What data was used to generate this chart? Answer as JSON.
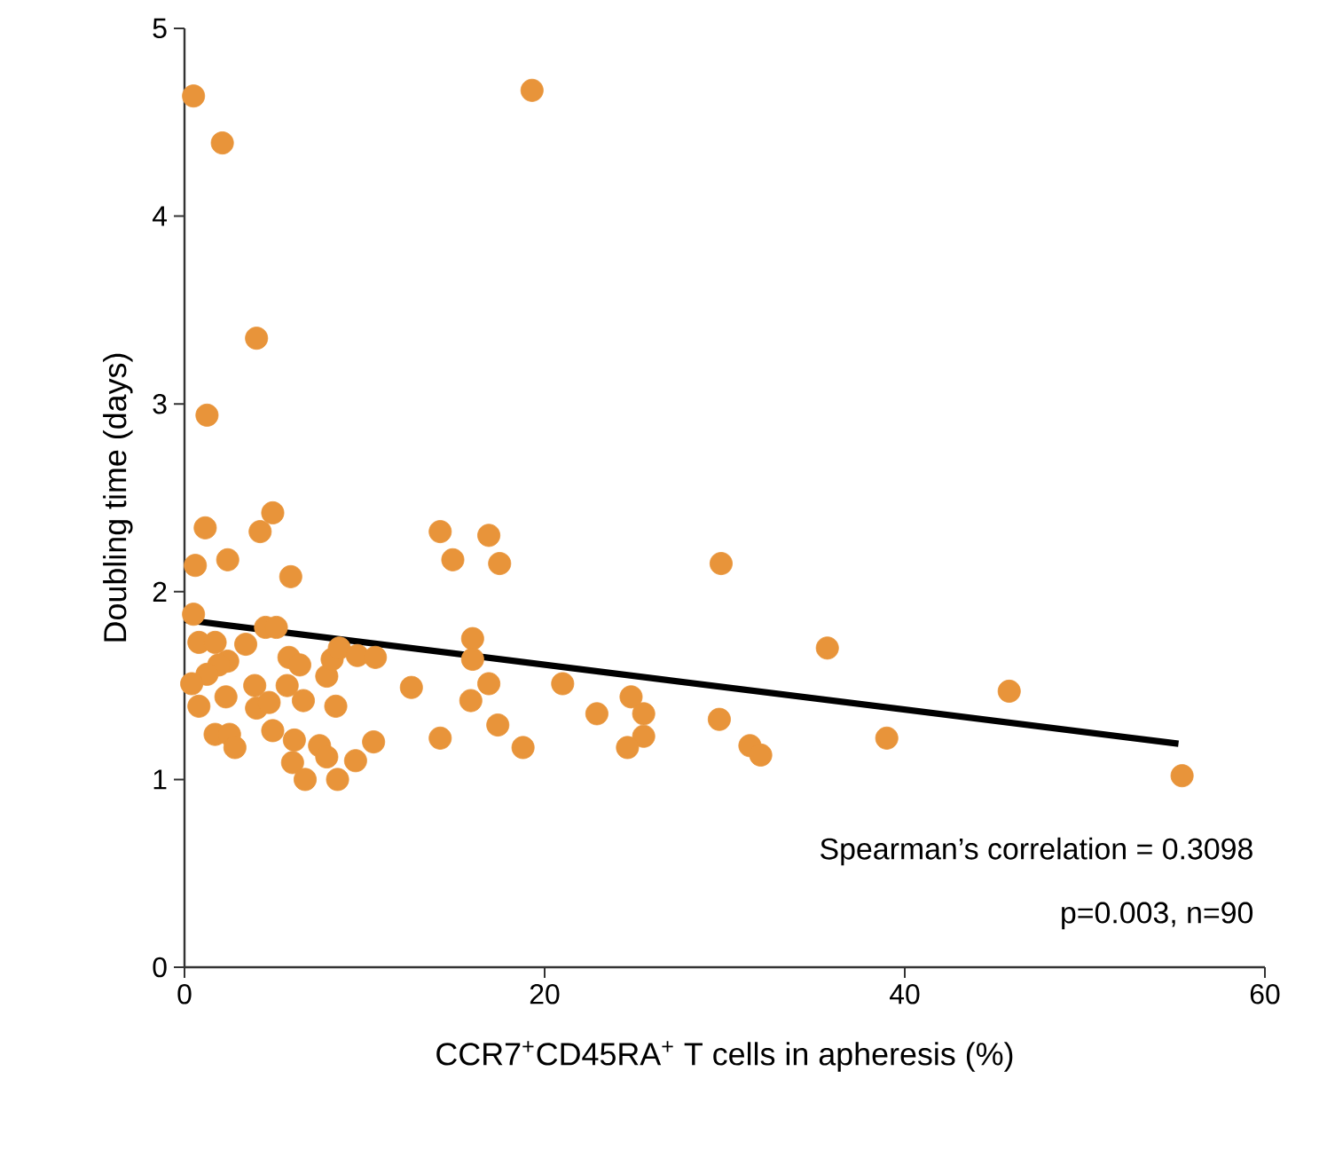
{
  "chart_data": {
    "type": "scatter",
    "xlabel": "CCR7$^{+}$CD45RA$^{+}$ T cells in apheresis (%)",
    "ylabel": "Doubling time (days)",
    "xlim": [
      0,
      60
    ],
    "ylim": [
      0,
      5
    ],
    "xticks": [
      0,
      20,
      40,
      60
    ],
    "yticks": [
      0,
      1,
      2,
      3,
      4,
      5
    ],
    "annotations": [
      "Spearman’s correlation = 0.3098",
      "p=0.003, n=90"
    ],
    "series": [
      {
        "marker": "circle",
        "color": "#e8943a",
        "x": [
          0.5,
          2.1,
          19.3,
          4.0,
          1.25,
          4.9,
          1.15,
          4.2,
          0.6,
          2.4,
          5.9,
          14.2,
          16.9,
          14.9,
          17.5,
          29.8,
          0.5,
          0.8,
          1.7,
          3.4,
          4.5,
          5.1,
          2.4,
          1.9,
          1.25,
          0.4,
          0.8,
          2.3,
          3.9,
          4.0,
          4.7,
          5.7,
          5.8,
          6.4,
          6.6,
          7.9,
          8.2,
          8.6,
          8.4,
          9.6,
          10.6,
          12.6,
          16.0,
          16.0,
          16.9,
          15.9,
          14.2,
          17.4,
          18.8,
          21.0,
          1.7,
          2.5,
          2.8,
          4.9,
          6.1,
          6.0,
          6.7,
          7.5,
          7.9,
          8.5,
          9.5,
          10.5,
          22.9,
          24.8,
          25.5,
          25.5,
          24.6,
          29.7,
          31.4,
          32.0,
          35.7,
          39.0,
          45.8,
          55.4
        ],
        "values": [
          4.64,
          4.39,
          4.67,
          3.35,
          2.94,
          2.42,
          2.34,
          2.32,
          2.14,
          2.17,
          2.08,
          2.32,
          2.3,
          2.17,
          2.15,
          2.15,
          1.88,
          1.73,
          1.73,
          1.72,
          1.81,
          1.81,
          1.63,
          1.61,
          1.56,
          1.51,
          1.39,
          1.44,
          1.5,
          1.38,
          1.41,
          1.5,
          1.65,
          1.61,
          1.42,
          1.55,
          1.64,
          1.7,
          1.39,
          1.66,
          1.65,
          1.49,
          1.75,
          1.64,
          1.51,
          1.42,
          1.22,
          1.29,
          1.17,
          1.51,
          1.24,
          1.24,
          1.17,
          1.26,
          1.21,
          1.09,
          1.0,
          1.18,
          1.12,
          1.0,
          1.1,
          1.2,
          1.35,
          1.44,
          1.35,
          1.23,
          1.17,
          1.32,
          1.18,
          1.13,
          1.7,
          1.22,
          1.47,
          1.02
        ]
      },
      {
        "type": "line",
        "line_style": "solid",
        "color": "#000000",
        "x": [
          0,
          55.2
        ],
        "values": [
          1.85,
          1.19
        ]
      }
    ]
  }
}
